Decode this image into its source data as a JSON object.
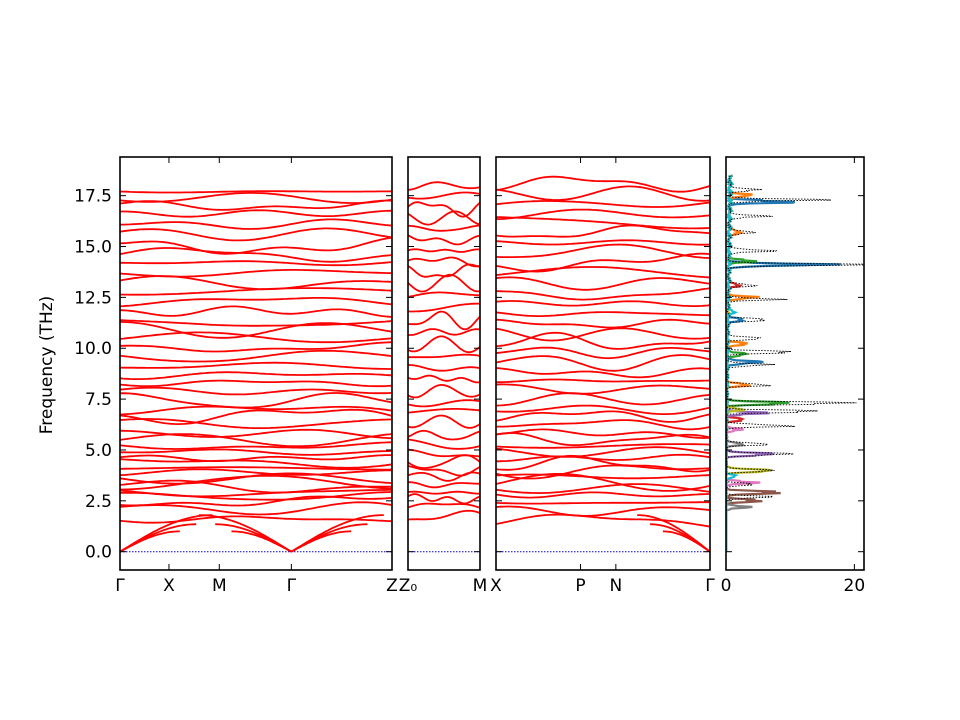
{
  "chart_data": {
    "type": "line",
    "ylabel": "Frequency (THz)",
    "ylim": [
      -0.9,
      19.4
    ],
    "yticks": [
      "0.0",
      "2.5",
      "5.0",
      "7.5",
      "10.0",
      "12.5",
      "15.0",
      "17.5"
    ],
    "ytick_values": [
      0,
      2.5,
      5,
      7.5,
      10,
      12.5,
      15,
      17.5
    ],
    "band_color": "#ff0000",
    "zero_line_color": "#0000cc",
    "segments": [
      {
        "path": "Γ-X-M-Γ-Z",
        "x_range": [
          0,
          1
        ],
        "ticks": [
          {
            "label": "Γ",
            "x": 0.0
          },
          {
            "label": "X",
            "x": 0.18
          },
          {
            "label": "M",
            "x": 0.365
          },
          {
            "label": "Γ",
            "x": 0.63
          },
          {
            "label": "Z",
            "x": 1.0
          }
        ],
        "acoustic_minima": [
          0.0,
          0.63
        ],
        "acoustic_maxima": [
          {
            "x": 0.365,
            "y": 1.9
          }
        ],
        "optical_anchor_freqs": [
          1.6,
          2.1,
          2.5,
          2.7,
          2.9,
          3.2,
          3.4,
          3.6,
          3.9,
          4.1,
          4.4,
          4.6,
          4.9,
          5.2,
          5.5,
          5.8,
          6.3,
          6.7,
          7.0,
          7.4,
          7.9,
          8.3,
          8.7,
          9.1,
          9.6,
          10.1,
          10.5,
          10.9,
          11.3,
          11.8,
          12.3,
          12.8,
          13.2,
          13.7,
          14.2,
          14.6,
          15.1,
          15.6,
          16.1,
          16.6,
          17.0,
          17.4,
          17.7
        ]
      },
      {
        "path": "Z0-M",
        "x_range": [
          0,
          1
        ],
        "ticks": [
          {
            "label": "Z₀",
            "x": 0.0
          },
          {
            "label": "M",
            "x": 1.0
          }
        ],
        "acoustic_minima": [],
        "acoustic_maxima": [
          {
            "x": 1.0,
            "y": 1.6
          }
        ],
        "optical_anchor_freqs": [
          1.7,
          2.2,
          2.6,
          2.9,
          3.3,
          3.7,
          4.0,
          4.4,
          4.8,
          5.3,
          5.7,
          6.4,
          6.9,
          7.3,
          7.9,
          8.5,
          9.0,
          9.6,
          10.2,
          10.8,
          11.4,
          12.0,
          12.6,
          13.2,
          13.8,
          14.3,
          14.8,
          15.4,
          15.9,
          16.4,
          16.9,
          17.5,
          18.0
        ]
      },
      {
        "path": "X-P-N-Γ",
        "x_range": [
          0,
          1
        ],
        "ticks": [
          {
            "label": "X",
            "x": 0.0
          },
          {
            "label": "P",
            "x": 0.395
          },
          {
            "label": "N",
            "x": 0.56
          },
          {
            "label": "Γ",
            "x": 1.0
          }
        ],
        "acoustic_minima": [
          1.0
        ],
        "acoustic_maxima": [
          {
            "x": 0.0,
            "y": 1.1
          }
        ],
        "optical_anchor_freqs": [
          1.5,
          2.0,
          2.4,
          2.8,
          3.1,
          3.4,
          3.7,
          4.0,
          4.3,
          4.6,
          4.9,
          5.2,
          5.5,
          5.8,
          6.3,
          6.7,
          7.0,
          7.5,
          8.0,
          8.4,
          8.8,
          9.3,
          9.8,
          10.3,
          10.7,
          11.2,
          11.7,
          12.2,
          12.7,
          13.2,
          13.7,
          14.2,
          14.7,
          15.2,
          15.7,
          16.2,
          16.6,
          17.1,
          17.6,
          18.1
        ]
      }
    ],
    "dos": {
      "xlim": [
        0,
        21.5
      ],
      "xticks": [
        "0",
        "20"
      ],
      "xtick_values": [
        0,
        20
      ],
      "total_style": "black dotted",
      "total_peaks": [
        {
          "f": 2.7,
          "a": 7.5
        },
        {
          "f": 3.3,
          "a": 5.5
        },
        {
          "f": 4.0,
          "a": 9.0
        },
        {
          "f": 4.8,
          "a": 10.0
        },
        {
          "f": 5.3,
          "a": 8.0
        },
        {
          "f": 6.2,
          "a": 13.0
        },
        {
          "f": 6.9,
          "a": 14.0
        },
        {
          "f": 7.3,
          "a": 19.0
        },
        {
          "f": 8.2,
          "a": 6.0
        },
        {
          "f": 9.2,
          "a": 8.5
        },
        {
          "f": 9.8,
          "a": 11.5
        },
        {
          "f": 10.5,
          "a": 8.0
        },
        {
          "f": 11.4,
          "a": 9.5
        },
        {
          "f": 12.4,
          "a": 7.0
        },
        {
          "f": 13.1,
          "a": 6.0
        },
        {
          "f": 14.1,
          "a": 21.0
        },
        {
          "f": 14.8,
          "a": 9.0
        },
        {
          "f": 15.7,
          "a": 6.5
        },
        {
          "f": 16.5,
          "a": 7.0
        },
        {
          "f": 17.3,
          "a": 13.0
        },
        {
          "f": 17.8,
          "a": 6.0
        }
      ],
      "partials": [
        {
          "color": "#1f77b4",
          "peaks": [
            {
              "f": 9.3,
              "a": 6.5
            },
            {
              "f": 14.1,
              "a": 14.0
            },
            {
              "f": 17.2,
              "a": 8.5
            },
            {
              "f": 11.4,
              "a": 3.5
            }
          ]
        },
        {
          "color": "#ff7f0e",
          "peaks": [
            {
              "f": 8.2,
              "a": 3.0
            },
            {
              "f": 10.2,
              "a": 3.5
            },
            {
              "f": 12.5,
              "a": 3.5
            },
            {
              "f": 15.7,
              "a": 3.0
            },
            {
              "f": 17.5,
              "a": 4.0
            }
          ]
        },
        {
          "color": "#2ca02c",
          "peaks": [
            {
              "f": 7.3,
              "a": 9.0
            },
            {
              "f": 9.7,
              "a": 4.0
            },
            {
              "f": 14.3,
              "a": 4.0
            }
          ]
        },
        {
          "color": "#d62728",
          "peaks": [
            {
              "f": 6.5,
              "a": 2.5
            },
            {
              "f": 13.1,
              "a": 2.5
            }
          ]
        },
        {
          "color": "#9467bd",
          "peaks": [
            {
              "f": 4.8,
              "a": 7.0
            },
            {
              "f": 6.8,
              "a": 5.5
            }
          ]
        },
        {
          "color": "#8c564b",
          "peaks": [
            {
              "f": 2.9,
              "a": 9.5
            },
            {
              "f": 2.5,
              "a": 5.5
            }
          ]
        },
        {
          "color": "#e377c2",
          "peaks": [
            {
              "f": 3.4,
              "a": 4.0
            },
            {
              "f": 6.0,
              "a": 2.0
            }
          ]
        },
        {
          "color": "#7f7f7f",
          "peaks": [
            {
              "f": 2.2,
              "a": 3.0
            },
            {
              "f": 5.3,
              "a": 3.0
            }
          ]
        },
        {
          "color": "#bcbd22",
          "peaks": [
            {
              "f": 4.0,
              "a": 8.5
            },
            {
              "f": 7.0,
              "a": 2.5
            }
          ]
        },
        {
          "color": "#17becf",
          "peaks": [
            {
              "f": 3.7,
              "a": 2.0
            },
            {
              "f": 11.8,
              "a": 1.5
            }
          ]
        }
      ]
    }
  }
}
